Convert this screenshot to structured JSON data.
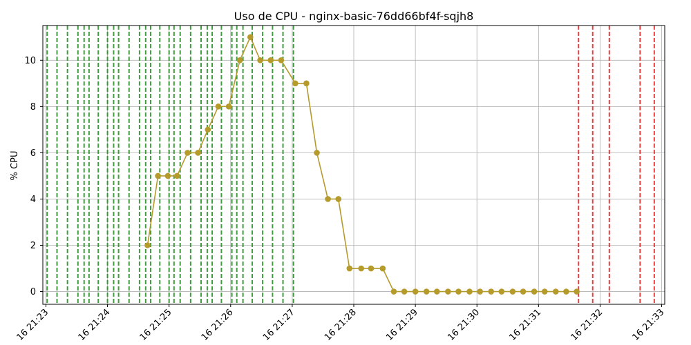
{
  "chart_data": {
    "type": "line",
    "title": "Uso de CPU - nginx-basic-76dd66bf4f-sqjh8",
    "xlabel": "",
    "ylabel": "% CPU",
    "xlim": [
      "21:22.95",
      "21:33.05"
    ],
    "ylim": [
      -0.55,
      11.5
    ],
    "yticks": [
      0,
      2,
      4,
      6,
      8,
      10
    ],
    "xticks": [
      {
        "t": "21:23",
        "label": "16 21:23"
      },
      {
        "t": "21:24",
        "label": "16 21:24"
      },
      {
        "t": "21:25",
        "label": "16 21:25"
      },
      {
        "t": "21:26",
        "label": "16 21:26"
      },
      {
        "t": "21:27",
        "label": "16 21:27"
      },
      {
        "t": "21:28",
        "label": "16 21:28"
      },
      {
        "t": "21:29",
        "label": "16 21:29"
      },
      {
        "t": "21:30",
        "label": "16 21:30"
      },
      {
        "t": "21:31",
        "label": "16 21:31"
      },
      {
        "t": "21:32",
        "label": "16 21:32"
      },
      {
        "t": "21:33",
        "label": "16 21:33"
      }
    ],
    "grid": true,
    "series": [
      {
        "color": "#b59a2c",
        "points": [
          [
            "21:24.65",
            2
          ],
          [
            "21:24.82",
            5
          ],
          [
            "21:24.98",
            5
          ],
          [
            "21:25.13",
            5
          ],
          [
            "21:25.30",
            6
          ],
          [
            "21:25.47",
            6
          ],
          [
            "21:25.63",
            7
          ],
          [
            "21:25.80",
            8
          ],
          [
            "21:25.97",
            8
          ],
          [
            "21:26.15",
            10
          ],
          [
            "21:26.32",
            11
          ],
          [
            "21:26.48",
            10
          ],
          [
            "21:26.65",
            10
          ],
          [
            "21:26.82",
            10
          ],
          [
            "21:27.05",
            9
          ],
          [
            "21:27.23",
            9
          ],
          [
            "21:27.40",
            6
          ],
          [
            "21:27.58",
            4
          ],
          [
            "21:27.75",
            4
          ],
          [
            "21:27.93",
            1
          ],
          [
            "21:28.12",
            1
          ],
          [
            "21:28.28",
            1
          ],
          [
            "21:28.47",
            1
          ],
          [
            "21:28.65",
            0
          ],
          [
            "21:28.82",
            0
          ],
          [
            "21:29.00",
            0
          ],
          [
            "21:29.18",
            0
          ],
          [
            "21:29.35",
            0
          ],
          [
            "21:29.53",
            0
          ],
          [
            "21:29.70",
            0
          ],
          [
            "21:29.88",
            0
          ],
          [
            "21:30.05",
            0
          ],
          [
            "21:30.23",
            0
          ],
          [
            "21:30.40",
            0
          ],
          [
            "21:30.58",
            0
          ],
          [
            "21:30.75",
            0
          ],
          [
            "21:30.93",
            0
          ],
          [
            "21:31.10",
            0
          ],
          [
            "21:31.28",
            0
          ],
          [
            "21:31.45",
            0
          ],
          [
            "21:31.62",
            0
          ]
        ]
      }
    ],
    "event_lines": {
      "green": {
        "color": "#1e8c1e",
        "times": [
          "21:23.02",
          "21:23.18",
          "21:23.35",
          "21:23.52",
          "21:23.62",
          "21:23.70",
          "21:23.85",
          "21:24.00",
          "21:24.10",
          "21:24.18",
          "21:24.35",
          "21:24.52",
          "21:24.62",
          "21:24.70",
          "21:24.85",
          "21:25.00",
          "21:25.08",
          "21:25.18",
          "21:25.35",
          "21:25.52",
          "21:25.62",
          "21:25.70",
          "21:25.85",
          "21:26.02",
          "21:26.10",
          "21:26.20",
          "21:26.35",
          "21:26.52",
          "21:26.68",
          "21:26.85",
          "21:27.02"
        ]
      },
      "red": {
        "color": "#e02020",
        "times": [
          "21:31.65",
          "21:31.88",
          "21:32.15",
          "21:32.65",
          "21:32.88"
        ]
      }
    }
  }
}
